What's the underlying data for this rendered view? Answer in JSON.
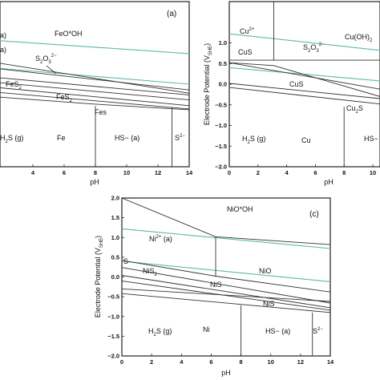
{
  "chart_data": [
    {
      "type": "line",
      "panel_label": "(a)",
      "xlabel": "pH",
      "ylabel": "",
      "xlim": [
        0,
        14
      ],
      "ylim": [
        -2.0,
        2.0
      ],
      "x_ticks": [
        "4",
        "6",
        "8",
        "10",
        "12",
        "14"
      ],
      "region_labels": [
        "FeO*OH",
        "S2O3 2−",
        "FeS2",
        "FeS2",
        "Fes",
        "H2S (g)",
        "Fe",
        "HS− (a)",
        "S2−",
        "a",
        "a"
      ],
      "region_labels_display": {
        "feooh": "FeO*OH",
        "s2o3": "S",
        "s2o3_sub1": "2",
        "s2o3_o": "O",
        "s2o3_sub2": "3",
        "s2o3_sup": "2−",
        "fes2_a": "FeS",
        "fes2_a_sub": "2",
        "fes2_b": "FeS",
        "fes2_b_sub": "2",
        "fes": "Fes",
        "h2s": "H",
        "h2s_sub": "2",
        "h2s_rest": "S (g)",
        "fe": "Fe",
        "hs": "HS− (a)",
        "s2": "S",
        "s2_sup": "2−",
        "a1": "a)",
        "a2": "a)"
      },
      "series": [
        {
          "values": [
            [
              0,
              1.1
            ],
            [
              14,
              0.74
            ]
          ],
          "color": "#5fb8b0"
        },
        {
          "values": [
            [
              0,
              0.44
            ],
            [
              14,
              0.0
            ]
          ],
          "color": "#5fb8b0"
        },
        {
          "values": [
            [
              0,
              0.62
            ],
            [
              14,
              -0.22
            ]
          ]
        },
        {
          "values": [
            [
              0,
              0.45
            ],
            [
              14,
              -0.14
            ]
          ]
        },
        {
          "values": [
            [
              0,
              0.22
            ],
            [
              14,
              -0.26
            ]
          ]
        },
        {
          "values": [
            [
              0,
              0.1
            ],
            [
              14,
              -0.38
            ]
          ]
        },
        {
          "values": [
            [
              0,
              -0.02
            ],
            [
              14,
              -0.52
            ]
          ]
        },
        {
          "values": [
            [
              0,
              -0.14
            ],
            [
              14,
              -0.6
            ]
          ]
        },
        {
          "values": [
            [
              0,
              -0.26
            ],
            [
              7.8,
              -0.48
            ],
            [
              14,
              -0.62
            ]
          ]
        },
        {
          "values": [
            [
              8,
              -2.0
            ],
            [
              8,
              -0.53
            ]
          ]
        },
        {
          "values": [
            [
              12.9,
              -2.0
            ],
            [
              12.9,
              -0.57
            ]
          ]
        }
      ]
    },
    {
      "type": "line",
      "panel_label": "",
      "xlabel": "pH",
      "ylabel": "Electrode Potential (V",
      "ylabel_sub": "SHE",
      "ylabel_close": ")",
      "xlim": [
        0,
        10.5
      ],
      "ylim": [
        -2.0,
        2.0
      ],
      "y_ticks": [
        "1.0",
        "0.5",
        "0.0",
        "−0.5",
        "−1.0",
        "−1.5",
        "−2.0"
      ],
      "x_ticks": [
        "0",
        "2",
        "4",
        "6",
        "8",
        "10"
      ],
      "region_labels_display": {
        "cu": "Cu",
        "cu_sup": "2+",
        "cuoh2": "Cu(OH)",
        "cuoh2_sub": "2",
        "s2o3": "S",
        "s2o3_sub1": "2",
        "s2o3_o": "O",
        "s2o3_sub2": "3",
        "s2o3_sup": "2−",
        "cus1": "CuS",
        "cus2": "CuS",
        "cu2s": "Cu",
        "cu2s_sub": "2",
        "cu2s_s": "S",
        "h2s": "H",
        "h2s_sub": "2",
        "h2s_rest": "S (g)",
        "cu_metal": "Cu",
        "hs": "HS−"
      },
      "series": [
        {
          "values": [
            [
              0,
              1.22
            ],
            [
              10.5,
              0.82
            ]
          ],
          "color": "#5fb8b0"
        },
        {
          "values": [
            [
              0,
              0.4
            ],
            [
              10.5,
              0.08
            ]
          ],
          "color": "#5fb8b0"
        },
        {
          "values": [
            [
              3.1,
              2.0
            ],
            [
              3.1,
              0.58
            ]
          ]
        },
        {
          "values": [
            [
              0,
              0.58
            ],
            [
              10.5,
              0.58
            ]
          ]
        },
        {
          "values": [
            [
              0,
              0.52
            ],
            [
              3.1,
              0.45
            ],
            [
              10.5,
              -0.3
            ]
          ]
        },
        {
          "values": [
            [
              0,
              0.52
            ],
            [
              10.5,
              -0.12
            ]
          ]
        },
        {
          "values": [
            [
              0,
              0.02
            ],
            [
              10.5,
              -0.35
            ]
          ]
        },
        {
          "values": [
            [
              0,
              -0.08
            ],
            [
              10.5,
              -0.48
            ]
          ]
        },
        {
          "values": [
            [
              8,
              -2.0
            ],
            [
              8,
              -0.55
            ]
          ]
        }
      ]
    },
    {
      "type": "line",
      "panel_label": "(c)",
      "xlabel": "pH",
      "ylabel": "Electrode Potential (V",
      "ylabel_sub": "SHE",
      "ylabel_close": ")",
      "xlim": [
        0,
        14
      ],
      "ylim": [
        -2.0,
        2.0
      ],
      "y_ticks": [
        "2.0",
        "1.5",
        "1.0",
        "0.5",
        "0.0",
        "−0.5",
        "−1.0",
        "−1.5",
        "−2.0"
      ],
      "x_ticks": [
        "0",
        "2",
        "4",
        "6",
        "8",
        "10",
        "12",
        "14"
      ],
      "region_labels_display": {
        "niooh": "NiO*OH",
        "ni2": "Ni",
        "ni2_sup": "2+",
        "ni2_rest": " (a)",
        "s_label": "S",
        "nis2": "NiS",
        "nis2_sub": "2",
        "nio": "NiO",
        "nis1": "NiS",
        "nis2b": "NiS",
        "h2s": "H",
        "h2s_sub": "2",
        "h2s_rest": "S (g)",
        "ni": "Ni",
        "hs": "HS− (a)",
        "s2": "S",
        "s2_sup": "2−"
      },
      "series": [
        {
          "values": [
            [
              0,
              1.22
            ],
            [
              14,
              0.72
            ]
          ],
          "color": "#5fb8b0"
        },
        {
          "values": [
            [
              0,
              0.4
            ],
            [
              14,
              -0.12
            ]
          ],
          "color": "#5fb8b0"
        },
        {
          "values": [
            [
              0,
              2.0
            ],
            [
              6.3,
              1.02
            ],
            [
              14,
              0.82
            ]
          ]
        },
        {
          "values": [
            [
              6.3,
              1.02
            ],
            [
              6.3,
              0.02
            ]
          ]
        },
        {
          "values": [
            [
              0,
              0.42
            ],
            [
              6.3,
              0.02
            ],
            [
              14,
              -0.38
            ]
          ]
        },
        {
          "values": [
            [
              0,
              0.24
            ],
            [
              14,
              -0.66
            ]
          ]
        },
        {
          "values": [
            [
              0,
              0.04
            ],
            [
              14,
              -0.78
            ]
          ]
        },
        {
          "values": [
            [
              0,
              -0.1
            ],
            [
              14,
              -0.84
            ]
          ]
        },
        {
          "values": [
            [
              0,
              -0.3
            ],
            [
              14,
              -0.62
            ]
          ]
        },
        {
          "values": [
            [
              0,
              -0.42
            ],
            [
              14,
              -0.9
            ]
          ]
        },
        {
          "values": [
            [
              8,
              -2.0
            ],
            [
              8,
              -0.72
            ]
          ]
        },
        {
          "values": [
            [
              12.8,
              -2.0
            ],
            [
              12.8,
              -0.9
            ]
          ]
        }
      ]
    }
  ]
}
